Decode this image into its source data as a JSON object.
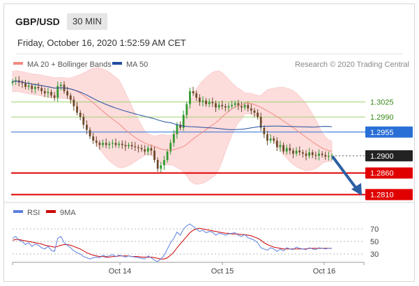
{
  "header": {
    "symbol": "GBP/USD",
    "timeframe": "30 MIN",
    "datetime": "Friday, October 16, 2020 1:52:59 AM CET"
  },
  "legend": {
    "items": [
      {
        "label": "MA 20 + Bollinger Bands",
        "color": "#f28b82"
      },
      {
        "label": "MA 50",
        "color": "#1f4e9c"
      }
    ],
    "copyright": "Research © 2020 Trading Central"
  },
  "rsi_legend": {
    "items": [
      {
        "label": "RSI",
        "color": "#5b7fde"
      },
      {
        "label": "9MA",
        "color": "#cc0000"
      }
    ]
  },
  "colors": {
    "bull": "#2f9a2f",
    "bear": "#6b4a2a",
    "bollinger_fill": "#fdd6d6",
    "ma20": "#f28b82",
    "ma50": "#1f4e9c",
    "support": "#e00000",
    "resistance": "#9fd46b",
    "pivot": "#2a6fd6",
    "current": "#222222",
    "arrow": "#2d5fa3"
  },
  "chart_data": [
    {
      "type": "candlestick",
      "title": "GBP/USD 30 MIN",
      "x_ticks": [
        "Oct 14",
        "Oct 15",
        "Oct 16"
      ],
      "ylim": [
        1.279,
        1.31
      ],
      "price_levels": [
        {
          "value": 1.3025,
          "label": "1.3025",
          "role": "resistance"
        },
        {
          "value": 1.299,
          "label": "1.2990",
          "role": "resistance"
        },
        {
          "value": 1.2955,
          "label": "1.2955",
          "role": "pivot"
        },
        {
          "value": 1.29,
          "label": "1.2900",
          "role": "current"
        },
        {
          "value": 1.286,
          "label": "1.2860",
          "role": "support"
        },
        {
          "value": 1.281,
          "label": "1.2810",
          "role": "support"
        }
      ],
      "closes": [
        1.3072,
        1.3075,
        1.307,
        1.3068,
        1.306,
        1.3063,
        1.3055,
        1.306,
        1.3057,
        1.305,
        1.3045,
        1.3048,
        1.304,
        1.3035,
        1.3062,
        1.3065,
        1.305,
        1.304,
        1.303,
        1.3015,
        1.3,
        1.299,
        1.2972,
        1.296,
        1.2945,
        1.2935,
        1.293,
        1.2925,
        1.293,
        1.2925,
        1.2928,
        1.293,
        1.2925,
        1.2928,
        1.2925,
        1.2922,
        1.2925,
        1.2922,
        1.292,
        1.2918,
        1.2915,
        1.291,
        1.2918,
        1.2912,
        1.289,
        1.287,
        1.2878,
        1.289,
        1.291,
        1.293,
        1.295,
        1.2972,
        1.2965,
        1.2995,
        1.302,
        1.305,
        1.3045,
        1.3035,
        1.3025,
        1.3028,
        1.302,
        1.3025,
        1.3022,
        1.3012,
        1.3018,
        1.3015,
        1.3012,
        1.3015,
        1.3018,
        1.3022,
        1.3015,
        1.3012,
        1.3018,
        1.301,
        1.3005,
        1.3,
        1.299,
        1.2965,
        1.295,
        1.2935,
        1.294,
        1.2935,
        1.292,
        1.2925,
        1.291,
        1.2918,
        1.2912,
        1.2905,
        1.2912,
        1.2908,
        1.2905,
        1.29,
        1.2908,
        1.2902,
        1.29,
        1.2905,
        1.2902,
        1.2898,
        1.29,
        1.29
      ],
      "series": [
        {
          "name": "MA 20 + Bollinger Bands",
          "role": "ma20"
        },
        {
          "name": "MA 50",
          "role": "ma50"
        }
      ]
    },
    {
      "type": "line",
      "title": "RSI",
      "ylim": [
        20,
        80
      ],
      "y_ticks": [
        70,
        50,
        30
      ],
      "series": [
        {
          "name": "RSI",
          "values": [
            55,
            58,
            52,
            50,
            45,
            48,
            42,
            46,
            44,
            40,
            38,
            42,
            36,
            34,
            55,
            58,
            48,
            44,
            40,
            35,
            32,
            30,
            26,
            24,
            22,
            24,
            25,
            24,
            28,
            26,
            27,
            29,
            26,
            28,
            27,
            25,
            27,
            26,
            25,
            24,
            23,
            22,
            27,
            24,
            20,
            18,
            22,
            28,
            38,
            48,
            55,
            65,
            60,
            70,
            75,
            78,
            74,
            70,
            66,
            68,
            64,
            66,
            65,
            60,
            63,
            62,
            60,
            62,
            63,
            64,
            60,
            58,
            61,
            56,
            54,
            52,
            48,
            40,
            38,
            36,
            40,
            38,
            34,
            38,
            35,
            40,
            38,
            37,
            41,
            39,
            38,
            37,
            40,
            38,
            37,
            40,
            39,
            38,
            39,
            39
          ]
        },
        {
          "name": "9MA",
          "values": [
            52,
            53,
            53,
            52,
            51,
            50,
            49,
            48,
            47,
            46,
            44,
            43,
            42,
            41,
            42,
            44,
            45,
            45,
            44,
            42,
            40,
            38,
            35,
            32,
            30,
            28,
            27,
            26,
            26,
            25,
            25,
            26,
            26,
            27,
            27,
            27,
            27,
            26,
            26,
            26,
            25,
            25,
            25,
            25,
            24,
            23,
            22,
            22,
            24,
            28,
            33,
            40,
            46,
            52,
            58,
            64,
            68,
            70,
            71,
            70,
            69,
            68,
            67,
            66,
            65,
            64,
            63,
            63,
            62,
            62,
            62,
            61,
            61,
            60,
            59,
            57,
            55,
            52,
            48,
            45,
            43,
            41,
            40,
            39,
            38,
            38,
            38,
            38,
            38,
            38,
            38,
            38,
            39,
            39,
            39,
            39,
            39,
            39,
            39,
            39
          ]
        }
      ]
    }
  ]
}
